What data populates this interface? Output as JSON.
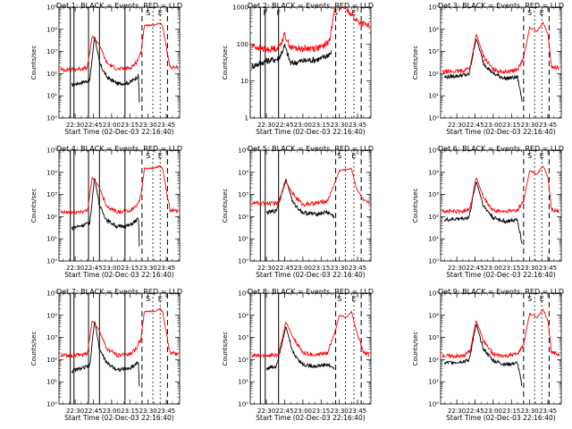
{
  "figure": {
    "xlabel": "Start Time (02-Dec-03 22:16:40)",
    "ylabel": "Counts/sec",
    "x_ticks": [
      "22:30",
      "22:45",
      "23:00",
      "23:15",
      "23:30",
      "23:45"
    ],
    "series_colors": {
      "events": "#000000",
      "lld": "#ff0000"
    },
    "interval_letters": {
      "S": "S",
      "E": "E",
      "F": "F"
    }
  },
  "chart_data": [
    {
      "type": "line",
      "title": "Det 1: BLACK = Events, RED = LLD",
      "yscale": "log",
      "y_ticks": [
        "10⁰",
        "10¹",
        "10²",
        "10³",
        "10⁴",
        "10⁵"
      ],
      "xlim": [
        "22:16:40",
        "23:56:00"
      ],
      "ylim": [
        1,
        100000
      ],
      "solid_lines": [
        "22:26:00",
        "22:29:00",
        "22:41:00",
        "22:50:00",
        "23:11:00"
      ],
      "dashed_lines": [
        "23:25:00",
        "23:46:00"
      ],
      "dotted_lines": [
        "23:34:00",
        "23:40:00"
      ],
      "labeled_markers": [
        {
          "time": "23:30:00",
          "label": "S"
        },
        {
          "time": "23:40:00",
          "label": "E"
        }
      ],
      "series": [
        {
          "name": "BLACK = Events",
          "x": [
            "22:27:00",
            "22:35:00",
            "22:42:00",
            "22:46:00",
            "22:50:00",
            "22:56:00",
            "23:05:00",
            "23:15:00",
            "23:22:00",
            "23:23:00"
          ],
          "y": [
            30,
            40,
            50,
            5000,
            300,
            70,
            35,
            40,
            80,
            3
          ]
        },
        {
          "name": "RED = LLD",
          "x": [
            "22:18:00",
            "22:30:00",
            "22:40:00",
            "22:44:00",
            "22:50:00",
            "22:56:00",
            "23:05:00",
            "23:15:00",
            "23:20:00",
            "23:24:00",
            "23:27:00",
            "23:35:00",
            "23:40:00",
            "23:42:00",
            "23:48:00",
            "23:55:00"
          ],
          "y": [
            150,
            160,
            180,
            5000,
            2000,
            300,
            160,
            180,
            300,
            800,
            15000,
            15000,
            20000,
            14000,
            200,
            180
          ]
        }
      ]
    },
    {
      "type": "line",
      "title": "Det 2: BLACK = Events, RED = LLD",
      "yscale": "log",
      "y_ticks": [
        "1",
        "10",
        "100",
        "1000"
      ],
      "xlim": [
        "22:16:40",
        "23:56:00"
      ],
      "ylim": [
        1,
        1000
      ],
      "solid_lines": [
        "22:25:00",
        "22:29:00",
        "22:40:00"
      ],
      "dashed_lines": [
        "23:27:00",
        "23:48:00"
      ],
      "dotted_lines": [
        "23:35:00",
        "23:42:00"
      ],
      "labeled_markers": [
        {
          "time": "22:29:00",
          "label": "F"
        },
        {
          "time": "22:40:00",
          "label": "F"
        },
        {
          "time": "23:27:00",
          "label": "S"
        },
        {
          "time": "23:42:00",
          "label": "E"
        }
      ],
      "series": [
        {
          "name": "BLACK = Events",
          "x": [
            "22:18:00",
            "22:30:00",
            "22:40:00",
            "22:45:00",
            "22:50:00",
            "23:00:00",
            "23:15:00",
            "23:24:00"
          ],
          "y": [
            25,
            35,
            40,
            90,
            30,
            35,
            40,
            60
          ]
        },
        {
          "name": "RED = LLD",
          "x": [
            "22:18:00",
            "22:30:00",
            "22:40:00",
            "22:45:00",
            "22:50:00",
            "23:00:00",
            "23:15:00",
            "23:22:00",
            "23:26:00",
            "23:35:00",
            "23:45:00",
            "23:55:00"
          ],
          "y": [
            90,
            70,
            80,
            180,
            80,
            75,
            80,
            120,
            1000,
            1000,
            400,
            300
          ]
        }
      ]
    },
    {
      "type": "line",
      "title": "Det 3: BLACK = Events, RED = LLD",
      "yscale": "log",
      "y_ticks": [
        "10⁰",
        "10¹",
        "10²",
        "10³",
        "10⁴",
        "10⁵"
      ],
      "xlim": [
        "22:16:40",
        "23:56:00"
      ],
      "ylim": [
        1,
        100000
      ],
      "solid_lines": [],
      "dashed_lines": [
        "23:25:00",
        "23:46:00"
      ],
      "dotted_lines": [
        "23:34:00",
        "23:40:00"
      ],
      "labeled_markers": [
        {
          "time": "23:30:00",
          "label": "S"
        },
        {
          "time": "23:40:00",
          "label": "E"
        }
      ],
      "series": [
        {
          "name": "BLACK = Events",
          "x": [
            "22:20:00",
            "22:40:00",
            "22:46:00",
            "22:52:00",
            "23:00:00",
            "23:10:00",
            "23:20:00",
            "23:24:00"
          ],
          "y": [
            70,
            90,
            4000,
            300,
            100,
            60,
            70,
            5
          ]
        },
        {
          "name": "RED = LLD",
          "x": [
            "22:18:00",
            "22:35:00",
            "22:41:00",
            "22:46:00",
            "22:52:00",
            "23:00:00",
            "23:10:00",
            "23:20:00",
            "23:25:00",
            "23:30:00",
            "23:36:00",
            "23:41:00",
            "23:45:00",
            "23:48:00",
            "23:55:00"
          ],
          "y": [
            120,
            130,
            200,
            6000,
            600,
            150,
            120,
            150,
            500,
            12000,
            8000,
            20000,
            6000,
            200,
            180
          ]
        }
      ]
    },
    {
      "type": "line",
      "title": "Det 4: BLACK = Events, RED = LLD",
      "yscale": "log",
      "y_ticks": [
        "10⁰",
        "10¹",
        "10²",
        "10³",
        "10⁴",
        "10⁵"
      ],
      "xlim": [
        "22:16:40",
        "23:56:00"
      ],
      "ylim": [
        1,
        100000
      ],
      "solid_lines": [
        "22:26:00",
        "22:29:00",
        "22:41:00",
        "22:50:00",
        "23:11:00"
      ],
      "dashed_lines": [
        "23:25:00",
        "23:46:00"
      ],
      "dotted_lines": [
        "23:34:00",
        "23:40:00"
      ],
      "labeled_markers": [
        {
          "time": "23:30:00",
          "label": "S"
        },
        {
          "time": "23:40:00",
          "label": "E"
        }
      ],
      "series": [
        {
          "name": "BLACK = Events",
          "x": [
            "22:27:00",
            "22:35:00",
            "22:42:00",
            "22:46:00",
            "22:50:00",
            "22:56:00",
            "23:05:00",
            "23:15:00",
            "23:22:00",
            "23:23:00"
          ],
          "y": [
            30,
            40,
            50,
            6000,
            300,
            70,
            35,
            40,
            80,
            3
          ]
        },
        {
          "name": "RED = LLD",
          "x": [
            "22:18:00",
            "22:30:00",
            "22:40:00",
            "22:44:00",
            "22:50:00",
            "22:56:00",
            "23:05:00",
            "23:15:00",
            "23:20:00",
            "23:24:00",
            "23:27:00",
            "23:35:00",
            "23:40:00",
            "23:42:00",
            "23:48:00",
            "23:55:00"
          ],
          "y": [
            150,
            160,
            180,
            6000,
            2000,
            300,
            160,
            180,
            300,
            800,
            15000,
            15000,
            20000,
            14000,
            200,
            180
          ]
        }
      ]
    },
    {
      "type": "line",
      "title": "Det 5: BLACK = Events, RED = LLD",
      "yscale": "log",
      "y_ticks": [
        "10⁰",
        "10¹",
        "10²",
        "10³",
        "10⁴",
        "10⁵"
      ],
      "xlim": [
        "22:16:40",
        "23:56:00"
      ],
      "ylim": [
        1,
        100000
      ],
      "solid_lines": [
        "22:25:00",
        "22:29:00",
        "22:40:00"
      ],
      "dashed_lines": [
        "23:27:00",
        "23:48:00"
      ],
      "dotted_lines": [
        "23:35:00",
        "23:42:00"
      ],
      "labeled_markers": [
        {
          "time": "23:30:00",
          "label": "S"
        },
        {
          "time": "23:42:00",
          "label": "E"
        }
      ],
      "series": [
        {
          "name": "BLACK = Events",
          "x": [
            "22:30:00",
            "22:38:00",
            "22:46:00",
            "22:52:00",
            "23:00:00",
            "23:10:00",
            "23:20:00",
            "23:26:00"
          ],
          "y": [
            150,
            180,
            5000,
            400,
            150,
            130,
            160,
            100
          ]
        },
        {
          "name": "RED = LLD",
          "x": [
            "22:18:00",
            "22:30:00",
            "22:40:00",
            "22:46:00",
            "22:52:00",
            "23:00:00",
            "23:10:00",
            "23:20:00",
            "23:26:00",
            "23:30:00",
            "23:40:00",
            "23:44:00",
            "23:50:00",
            "23:55:00"
          ],
          "y": [
            400,
            400,
            400,
            4000,
            1000,
            350,
            400,
            500,
            3000,
            12000,
            15000,
            2000,
            500,
            400
          ]
        }
      ]
    },
    {
      "type": "line",
      "title": "Det 6: BLACK = Events, RED = LLD",
      "yscale": "log",
      "y_ticks": [
        "10⁰",
        "10¹",
        "10²",
        "10³",
        "10⁴",
        "10⁵"
      ],
      "xlim": [
        "22:16:40",
        "23:56:00"
      ],
      "ylim": [
        1,
        100000
      ],
      "solid_lines": [],
      "dashed_lines": [
        "23:25:00",
        "23:46:00"
      ],
      "dotted_lines": [
        "23:34:00",
        "23:40:00"
      ],
      "labeled_markers": [
        {
          "time": "23:30:00",
          "label": "S"
        },
        {
          "time": "23:40:00",
          "label": "E"
        }
      ],
      "series": [
        {
          "name": "BLACK = Events",
          "x": [
            "22:20:00",
            "22:40:00",
            "22:46:00",
            "22:52:00",
            "23:00:00",
            "23:10:00",
            "23:20:00",
            "23:24:00"
          ],
          "y": [
            70,
            90,
            4000,
            300,
            90,
            60,
            70,
            5
          ]
        },
        {
          "name": "RED = LLD",
          "x": [
            "22:18:00",
            "22:35:00",
            "22:41:00",
            "22:46:00",
            "22:52:00",
            "23:00:00",
            "23:10:00",
            "23:20:00",
            "23:25:00",
            "23:30:00",
            "23:36:00",
            "23:41:00",
            "23:45:00",
            "23:48:00",
            "23:55:00"
          ],
          "y": [
            180,
            170,
            250,
            6000,
            700,
            180,
            170,
            200,
            500,
            12000,
            8000,
            20000,
            6000,
            200,
            180
          ]
        }
      ]
    },
    {
      "type": "line",
      "title": "Det 7: BLACK = Events, RED = LLD",
      "yscale": "log",
      "y_ticks": [
        "10⁰",
        "10¹",
        "10²",
        "10³",
        "10⁴",
        "10⁵"
      ],
      "xlim": [
        "22:16:40",
        "23:56:00"
      ],
      "ylim": [
        1,
        100000
      ],
      "solid_lines": [
        "22:26:00",
        "22:29:00",
        "22:41:00",
        "22:50:00",
        "23:11:00"
      ],
      "dashed_lines": [
        "23:25:00",
        "23:46:00"
      ],
      "dotted_lines": [
        "23:34:00",
        "23:40:00"
      ],
      "labeled_markers": [
        {
          "time": "23:30:00",
          "label": "S"
        },
        {
          "time": "23:40:00",
          "label": "E"
        }
      ],
      "series": [
        {
          "name": "BLACK = Events",
          "x": [
            "22:27:00",
            "22:35:00",
            "22:42:00",
            "22:46:00",
            "22:50:00",
            "22:56:00",
            "23:05:00",
            "23:15:00",
            "23:22:00",
            "23:23:00"
          ],
          "y": [
            30,
            40,
            50,
            6000,
            300,
            70,
            35,
            40,
            80,
            3
          ]
        },
        {
          "name": "RED = LLD",
          "x": [
            "22:18:00",
            "22:30:00",
            "22:40:00",
            "22:44:00",
            "22:50:00",
            "22:56:00",
            "23:05:00",
            "23:15:00",
            "23:20:00",
            "23:24:00",
            "23:27:00",
            "23:35:00",
            "23:40:00",
            "23:42:00",
            "23:48:00",
            "23:55:00"
          ],
          "y": [
            150,
            160,
            180,
            6000,
            2000,
            300,
            160,
            180,
            300,
            800,
            15000,
            15000,
            20000,
            14000,
            200,
            180
          ]
        }
      ]
    },
    {
      "type": "line",
      "title": "Det 8: BLACK = Events, RED = LLD",
      "yscale": "log",
      "y_ticks": [
        "10⁰",
        "10¹",
        "10²",
        "10³",
        "10⁴",
        "10⁵"
      ],
      "xlim": [
        "22:16:40",
        "23:56:00"
      ],
      "ylim": [
        1,
        100000
      ],
      "solid_lines": [
        "22:25:00",
        "22:29:00",
        "22:40:00"
      ],
      "dashed_lines": [
        "23:27:00",
        "23:48:00"
      ],
      "dotted_lines": [
        "23:35:00",
        "23:42:00"
      ],
      "labeled_markers": [
        {
          "time": "23:30:00",
          "label": "S"
        },
        {
          "time": "23:42:00",
          "label": "E"
        }
      ],
      "series": [
        {
          "name": "BLACK = Events",
          "x": [
            "22:30:00",
            "22:38:00",
            "22:46:00",
            "22:52:00",
            "23:00:00",
            "23:10:00",
            "23:20:00",
            "23:26:00"
          ],
          "y": [
            40,
            50,
            3000,
            200,
            60,
            50,
            60,
            40
          ]
        },
        {
          "name": "RED = LLD",
          "x": [
            "22:18:00",
            "22:30:00",
            "22:40:00",
            "22:46:00",
            "22:52:00",
            "23:00:00",
            "23:10:00",
            "23:20:00",
            "23:26:00",
            "23:30:00",
            "23:36:00",
            "23:40:00",
            "23:44:00",
            "23:50:00",
            "23:55:00"
          ],
          "y": [
            150,
            150,
            160,
            5000,
            1000,
            200,
            160,
            200,
            1500,
            10000,
            8000,
            15000,
            2000,
            200,
            180
          ]
        }
      ]
    },
    {
      "type": "line",
      "title": "Det 9: BLACK = Events, RED = LLD",
      "yscale": "log",
      "y_ticks": [
        "10⁰",
        "10¹",
        "10²",
        "10³",
        "10⁴",
        "10⁵"
      ],
      "xlim": [
        "22:16:40",
        "23:56:00"
      ],
      "ylim": [
        1,
        100000
      ],
      "solid_lines": [],
      "dashed_lines": [
        "23:25:00",
        "23:46:00"
      ],
      "dotted_lines": [
        "23:34:00",
        "23:40:00"
      ],
      "labeled_markers": [
        {
          "time": "23:30:00",
          "label": "S"
        },
        {
          "time": "23:40:00",
          "label": "E"
        }
      ],
      "series": [
        {
          "name": "BLACK = Events",
          "x": [
            "22:20:00",
            "22:40:00",
            "22:46:00",
            "22:52:00",
            "23:00:00",
            "23:10:00",
            "23:20:00",
            "23:24:00"
          ],
          "y": [
            70,
            90,
            4000,
            300,
            90,
            60,
            70,
            5
          ]
        },
        {
          "name": "RED = LLD",
          "x": [
            "22:18:00",
            "22:35:00",
            "22:41:00",
            "22:46:00",
            "22:52:00",
            "23:00:00",
            "23:10:00",
            "23:20:00",
            "23:25:00",
            "23:30:00",
            "23:36:00",
            "23:41:00",
            "23:45:00",
            "23:48:00",
            "23:55:00"
          ],
          "y": [
            150,
            140,
            250,
            6000,
            700,
            170,
            150,
            180,
            500,
            12000,
            8000,
            18000,
            6000,
            200,
            170
          ]
        }
      ]
    }
  ]
}
